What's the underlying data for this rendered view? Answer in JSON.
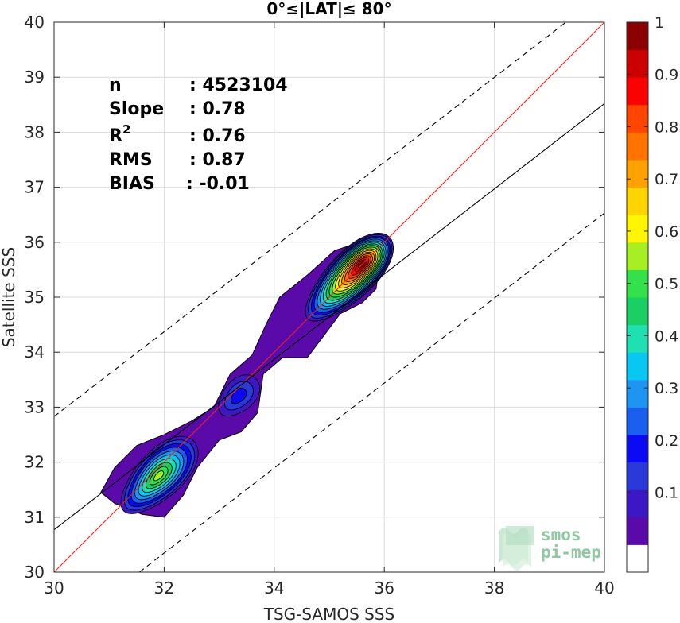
{
  "chart_data": {
    "type": "density-contour",
    "title": "0°≤|LAT|≤ 80°",
    "xlabel": "TSG-SAMOS SSS",
    "ylabel": "Satellite SSS",
    "xlim": [
      30,
      40
    ],
    "ylim": [
      30,
      40
    ],
    "xticks": [
      "30",
      "32",
      "34",
      "36",
      "38",
      "40"
    ],
    "yticks": [
      "30",
      "31",
      "32",
      "33",
      "34",
      "35",
      "36",
      "37",
      "38",
      "39",
      "40"
    ],
    "grid": true,
    "stats": [
      {
        "label": "n",
        "value": ": 4523104"
      },
      {
        "label": "Slope",
        "value": ": 0.78"
      },
      {
        "label": "R",
        "sup": "2",
        "value": ": 0.76"
      },
      {
        "label": "RMS",
        "value": ": 0.87"
      },
      {
        "label": "BIAS",
        "value": ": -0.01"
      }
    ],
    "lines": [
      {
        "kind": "identity",
        "color": "#e8251f",
        "style": "solid",
        "points": [
          [
            30,
            30
          ],
          [
            40,
            40
          ]
        ]
      },
      {
        "kind": "regression",
        "color": "#000000",
        "style": "solid",
        "points": [
          [
            30,
            30.77
          ],
          [
            40,
            38.52
          ]
        ]
      },
      {
        "kind": "upper-bound",
        "color": "#000000",
        "style": "dashed",
        "points": [
          [
            30,
            32.83
          ],
          [
            39.3,
            40
          ]
        ]
      },
      {
        "kind": "lower-bound",
        "color": "#000000",
        "style": "dashed",
        "points": [
          [
            31.55,
            30
          ],
          [
            40,
            36.53
          ]
        ]
      }
    ],
    "density_peaks": [
      {
        "x": 35.35,
        "y": 35.35,
        "peak": 0.95
      },
      {
        "x": 31.9,
        "y": 31.75,
        "peak": 0.5
      },
      {
        "x": 33.35,
        "y": 33.2,
        "peak": 0.15
      }
    ],
    "colorbar": {
      "ticks": [
        "0.1",
        "0.2",
        "0.3",
        "0.4",
        "0.5",
        "0.6",
        "0.7",
        "0.8",
        "0.9",
        "1"
      ],
      "levels": 19,
      "colors": [
        "#ffffff",
        "#5a0aa8",
        "#3c17c4",
        "#2a3ad8",
        "#0a0af5",
        "#1b5ff0",
        "#1f95f2",
        "#08c8f2",
        "#1fe0b0",
        "#1ad065",
        "#34e04b",
        "#a5ef22",
        "#fff600",
        "#ffd400",
        "#ffa100",
        "#ff7400",
        "#ff4500",
        "#ff0000",
        "#cc0000",
        "#8b0000"
      ]
    }
  },
  "watermark": {
    "line1": "smos",
    "line2": "pi-mep"
  }
}
